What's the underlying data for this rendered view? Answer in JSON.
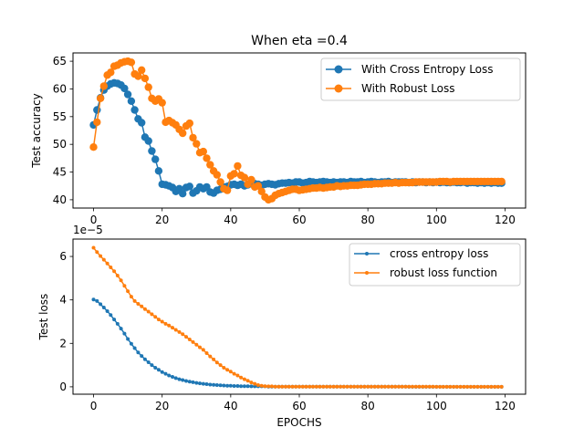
{
  "chart_data": [
    {
      "type": "line",
      "title": "When eta =0.4",
      "xlabel": "",
      "ylabel": "Test accuracy",
      "xlim": [
        -6,
        126
      ],
      "ylim": [
        38.5,
        66.5
      ],
      "xticks": [
        0,
        20,
        40,
        60,
        80,
        100,
        120
      ],
      "yticks": [
        40,
        45,
        50,
        55,
        60,
        65
      ],
      "legend_position": "top-right",
      "marker": "circle-large",
      "series": [
        {
          "name": "With Cross Entropy Loss",
          "color": "#1f77b4",
          "x": [
            0,
            1,
            2,
            3,
            4,
            5,
            6,
            7,
            8,
            9,
            10,
            11,
            12,
            13,
            14,
            15,
            16,
            17,
            18,
            19,
            20,
            21,
            22,
            23,
            24,
            25,
            26,
            27,
            28,
            29,
            30,
            31,
            32,
            33,
            34,
            35,
            36,
            37,
            38,
            39,
            40,
            41,
            42,
            43,
            44,
            45,
            46,
            47,
            48,
            49,
            50,
            51,
            52,
            53,
            54,
            55,
            56,
            57,
            58,
            59,
            60,
            61,
            62,
            63,
            64,
            65,
            66,
            67,
            68,
            69,
            70,
            71,
            72,
            73,
            74,
            75,
            76,
            77,
            78,
            79,
            80,
            81,
            82,
            83,
            84,
            85,
            86,
            87,
            88,
            89,
            90,
            91,
            92,
            93,
            94,
            95,
            96,
            97,
            98,
            99,
            100,
            101,
            102,
            103,
            104,
            105,
            106,
            107,
            108,
            109,
            110,
            111,
            112,
            113,
            114,
            115,
            116,
            117,
            118,
            119
          ],
          "y": [
            53.5,
            56.2,
            58.4,
            59.8,
            60.5,
            60.9,
            61.1,
            61.0,
            60.7,
            60.1,
            59.0,
            57.8,
            56.2,
            54.6,
            53.9,
            51.3,
            50.6,
            48.8,
            47.3,
            45.2,
            42.8,
            42.7,
            42.5,
            42.2,
            41.5,
            42.0,
            41.1,
            42.2,
            42.4,
            41.2,
            41.6,
            42.3,
            42.0,
            42.3,
            41.4,
            41.2,
            41.7,
            41.9,
            42.3,
            42.4,
            42.7,
            42.8,
            42.6,
            42.8,
            42.5,
            42.7,
            42.9,
            42.9,
            42.8,
            42.6,
            42.8,
            42.9,
            42.8,
            42.7,
            42.9,
            43.0,
            43.0,
            43.1,
            43.0,
            43.2,
            43.2,
            43.0,
            43.1,
            43.3,
            43.2,
            43.1,
            43.2,
            43.3,
            43.2,
            43.1,
            43.2,
            43.1,
            43.2,
            43.2,
            43.1,
            43.3,
            43.2,
            43.2,
            43.3,
            43.1,
            43.2,
            43.3,
            43.2,
            43.1,
            43.2,
            43.2,
            43.3,
            43.1,
            43.2,
            43.2,
            43.2,
            43.2,
            43.1,
            43.2,
            43.1,
            43.2,
            43.2,
            43.1,
            43.2,
            43.1,
            43.2,
            43.1,
            43.2,
            43.1,
            43.1,
            43.2,
            43.1,
            43.1,
            43.2,
            43.0,
            43.1,
            43.1,
            43.0,
            43.1,
            43.0,
            43.1,
            43.0,
            43.1,
            43.0,
            43.0
          ]
        },
        {
          "name": "With Robust Loss",
          "color": "#ff7f0e",
          "x": [
            0,
            1,
            2,
            3,
            4,
            5,
            6,
            7,
            8,
            9,
            10,
            11,
            12,
            13,
            14,
            15,
            16,
            17,
            18,
            19,
            20,
            21,
            22,
            23,
            24,
            25,
            26,
            27,
            28,
            29,
            30,
            31,
            32,
            33,
            34,
            35,
            36,
            37,
            38,
            39,
            40,
            41,
            42,
            43,
            44,
            45,
            46,
            47,
            48,
            49,
            50,
            51,
            52,
            53,
            54,
            55,
            56,
            57,
            58,
            59,
            60,
            61,
            62,
            63,
            64,
            65,
            66,
            67,
            68,
            69,
            70,
            71,
            72,
            73,
            74,
            75,
            76,
            77,
            78,
            79,
            80,
            81,
            82,
            83,
            84,
            85,
            86,
            87,
            88,
            89,
            90,
            91,
            92,
            93,
            94,
            95,
            96,
            97,
            98,
            99,
            100,
            101,
            102,
            103,
            104,
            105,
            106,
            107,
            108,
            109,
            110,
            111,
            112,
            113,
            114,
            115,
            116,
            117,
            118,
            119
          ],
          "y": [
            49.5,
            54.0,
            58.3,
            60.5,
            62.5,
            63.0,
            64.1,
            64.3,
            64.7,
            64.9,
            65.0,
            64.8,
            62.7,
            62.3,
            63.4,
            61.9,
            60.3,
            58.3,
            57.8,
            58.2,
            57.5,
            54.0,
            54.3,
            53.9,
            53.5,
            52.7,
            52.0,
            53.3,
            53.8,
            51.2,
            50.1,
            48.5,
            48.7,
            47.5,
            46.3,
            45.2,
            44.5,
            43.2,
            42.0,
            41.7,
            44.3,
            44.7,
            46.1,
            44.4,
            44.0,
            42.8,
            43.6,
            42.3,
            42.5,
            41.5,
            40.5,
            40.0,
            40.2,
            40.8,
            41.1,
            41.3,
            41.5,
            41.7,
            41.9,
            41.9,
            41.7,
            41.8,
            41.9,
            42.0,
            42.1,
            42.1,
            42.2,
            42.1,
            42.2,
            42.3,
            42.3,
            42.5,
            42.4,
            42.5,
            42.5,
            42.6,
            42.6,
            42.6,
            42.7,
            42.8,
            42.8,
            42.8,
            42.9,
            42.9,
            42.9,
            43.0,
            43.0,
            43.0,
            43.1,
            43.0,
            43.1,
            43.1,
            43.1,
            43.1,
            43.2,
            43.2,
            43.2,
            43.2,
            43.2,
            43.2,
            43.2,
            43.3,
            43.3,
            43.3,
            43.2,
            43.3,
            43.3,
            43.3,
            43.3,
            43.3,
            43.3,
            43.3,
            43.3,
            43.3,
            43.3,
            43.3,
            43.3,
            43.3,
            43.3,
            43.3
          ]
        }
      ]
    },
    {
      "type": "line",
      "title": "",
      "xlabel": "EPOCHS",
      "ylabel": "Test loss",
      "y_scale_label": "1e−5",
      "xlim": [
        -6,
        126
      ],
      "ylim": [
        -0.34,
        6.8
      ],
      "xticks": [
        0,
        20,
        40,
        60,
        80,
        100,
        120
      ],
      "yticks": [
        0,
        2,
        4,
        6
      ],
      "legend_position": "top-right",
      "marker": "dot-small",
      "series": [
        {
          "name": "cross entropy loss",
          "color": "#1f77b4",
          "x": [
            0,
            1,
            2,
            3,
            4,
            5,
            6,
            7,
            8,
            9,
            10,
            11,
            12,
            13,
            14,
            15,
            16,
            17,
            18,
            19,
            20,
            21,
            22,
            23,
            24,
            25,
            26,
            27,
            28,
            29,
            30,
            31,
            32,
            33,
            34,
            35,
            36,
            37,
            38,
            39,
            40,
            41,
            42,
            43,
            44,
            45,
            46,
            47,
            48,
            49,
            50,
            51,
            52,
            53,
            54,
            55,
            56,
            57,
            58,
            59,
            60,
            61,
            62,
            63,
            64,
            65,
            66,
            67,
            68,
            69,
            70,
            71,
            72,
            73,
            74,
            75,
            76,
            77,
            78,
            79,
            80,
            81,
            82,
            83,
            84,
            85,
            86,
            87,
            88,
            89,
            90,
            91,
            92,
            93,
            94,
            95,
            96,
            97,
            98,
            99,
            100,
            101,
            102,
            103,
            104,
            105,
            106,
            107,
            108,
            109,
            110,
            111,
            112,
            113,
            114,
            115,
            116,
            117,
            118,
            119
          ],
          "y": [
            4.02,
            3.95,
            3.8,
            3.65,
            3.48,
            3.3,
            3.1,
            2.9,
            2.68,
            2.45,
            2.2,
            1.98,
            1.78,
            1.58,
            1.42,
            1.27,
            1.13,
            1.0,
            0.88,
            0.78,
            0.68,
            0.6,
            0.52,
            0.46,
            0.4,
            0.35,
            0.31,
            0.27,
            0.24,
            0.21,
            0.18,
            0.16,
            0.14,
            0.12,
            0.1,
            0.09,
            0.08,
            0.07,
            0.06,
            0.05,
            0.05,
            0.04,
            0.04,
            0.03,
            0.03,
            0.03,
            0.02,
            0.02,
            0.02,
            0.02,
            0.02,
            0.01,
            0.01,
            0.01,
            0.01,
            0.01,
            0.01,
            0.01,
            0.01,
            0.01,
            0.01,
            0.01,
            0.01,
            0.01,
            0.01,
            0.01,
            0.01,
            0.01,
            0.01,
            0.01,
            0.01,
            0.01,
            0.01,
            0.01,
            0.01,
            0.01,
            0.01,
            0.01,
            0.01,
            0.01,
            0.01,
            0.01,
            0.01,
            0.01,
            0.01,
            0.01,
            0.01,
            0.01,
            0.01,
            0.01,
            0.01,
            0.01,
            0.0,
            0.0,
            0.0,
            0.0,
            0.0,
            0.0,
            0.0,
            0.0,
            0.0,
            0.0,
            0.0,
            0.0,
            0.0,
            0.0,
            0.0,
            0.0,
            0.0,
            0.0,
            0.0,
            0.0,
            0.0,
            0.0,
            0.0,
            0.0,
            0.0,
            0.0,
            0.0,
            0.0
          ]
        },
        {
          "name": "robust loss function",
          "color": "#ff7f0e",
          "x": [
            0,
            1,
            2,
            3,
            4,
            5,
            6,
            7,
            8,
            9,
            10,
            11,
            12,
            13,
            14,
            15,
            16,
            17,
            18,
            19,
            20,
            21,
            22,
            23,
            24,
            25,
            26,
            27,
            28,
            29,
            30,
            31,
            32,
            33,
            34,
            35,
            36,
            37,
            38,
            39,
            40,
            41,
            42,
            43,
            44,
            45,
            46,
            47,
            48,
            49,
            50,
            51,
            52,
            53,
            54,
            55,
            56,
            57,
            58,
            59,
            60,
            61,
            62,
            63,
            64,
            65,
            66,
            67,
            68,
            69,
            70,
            71,
            72,
            73,
            74,
            75,
            76,
            77,
            78,
            79,
            80,
            81,
            82,
            83,
            84,
            85,
            86,
            87,
            88,
            89,
            90,
            91,
            92,
            93,
            94,
            95,
            96,
            97,
            98,
            99,
            100,
            101,
            102,
            103,
            104,
            105,
            106,
            107,
            108,
            109,
            110,
            111,
            112,
            113,
            114,
            115,
            116,
            117,
            118,
            119
          ],
          "y": [
            6.4,
            6.2,
            6.02,
            5.85,
            5.68,
            5.5,
            5.32,
            5.12,
            4.9,
            4.65,
            4.4,
            4.15,
            3.95,
            3.82,
            3.7,
            3.58,
            3.46,
            3.34,
            3.22,
            3.1,
            3.0,
            2.9,
            2.82,
            2.72,
            2.62,
            2.52,
            2.42,
            2.3,
            2.18,
            2.06,
            1.94,
            1.82,
            1.7,
            1.55,
            1.4,
            1.26,
            1.12,
            1.0,
            0.88,
            0.78,
            0.7,
            0.6,
            0.52,
            0.43,
            0.35,
            0.28,
            0.2,
            0.14,
            0.08,
            0.05,
            0.03,
            0.02,
            0.02,
            0.01,
            0.01,
            0.01,
            0.01,
            0.01,
            0.01,
            0.01,
            0.01,
            0.01,
            0.01,
            0.01,
            0.01,
            0.01,
            0.01,
            0.01,
            0.01,
            0.01,
            0.01,
            0.01,
            0.01,
            0.01,
            0.01,
            0.01,
            0.01,
            0.01,
            0.01,
            0.01,
            0.01,
            0.01,
            0.01,
            0.01,
            0.01,
            0.01,
            0.01,
            0.01,
            0.01,
            0.01,
            0.01,
            0.01,
            0.01,
            0.01,
            0.01,
            0.01,
            0.01,
            0.01,
            0.01,
            0.01,
            0.0,
            0.0,
            0.0,
            0.0,
            0.0,
            0.0,
            0.0,
            0.0,
            0.0,
            0.0,
            0.0,
            0.0,
            0.0,
            0.0,
            0.0,
            0.0,
            0.0,
            0.0,
            0.0,
            0.0
          ]
        }
      ]
    }
  ]
}
